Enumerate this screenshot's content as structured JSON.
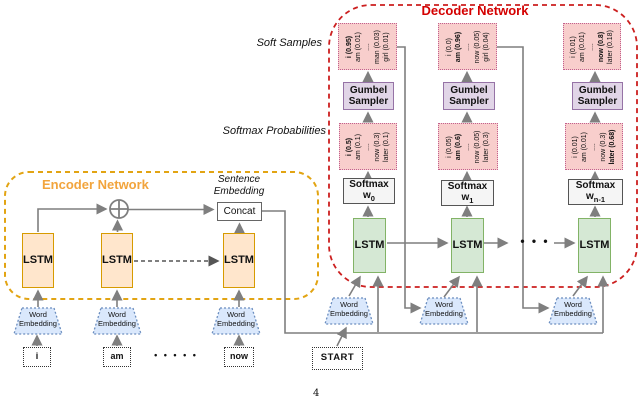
{
  "page": {
    "number": "4"
  },
  "colors": {
    "encoder_boundary": "#E2A413",
    "encoder_title": "#F2A43C",
    "decoder_boundary": "#CC1F1F",
    "decoder_title": "#D40000",
    "pink_fill": "#F8CECC",
    "pink_border": "#C2608E",
    "purple_fill": "#E1D5E7",
    "purple_border": "#9673A6",
    "green_fill": "#D5E8D4",
    "green_border": "#82B366",
    "peach_fill": "#FFE6CC",
    "peach_border": "#D79B00",
    "blue_fill": "#DAE8FC",
    "blue_border": "#6C8EBF",
    "wire_gray": "#7F7F7F"
  },
  "encoder": {
    "title": "Encoder Network",
    "lstm_label": "LSTM",
    "concat_label": "Concat",
    "sentence_embedding_line1": "Sentence",
    "sentence_embedding_line2": "Embedding",
    "word_embedding_line1": "Word",
    "word_embedding_line2": "Embedding",
    "input_words": [
      "i",
      "am",
      "now"
    ],
    "input_dots": "• • • • •"
  },
  "decoder": {
    "title": "Decoder Network",
    "soft_samples_label": "Soft Samples",
    "softmax_probabilities_label": "Softmax Probabilities",
    "lstm_label": "LSTM",
    "lstm_dots": "• • •",
    "start_label": "START",
    "gumbel_line1": "Gumbel",
    "gumbel_line2": "Sampler",
    "softmax_label": "Softmax",
    "w_label": "w",
    "softmax_subscripts": [
      "0",
      "1",
      "n-1"
    ],
    "word_embedding_line1": "Word",
    "word_embedding_line2": "Embedding",
    "columns": [
      {
        "soft_samples": [
          {
            "text": "i (0.95)",
            "bold": true
          },
          {
            "text": "am (0.01)",
            "bold": false
          },
          {
            "text": "....",
            "bold": false
          },
          {
            "text": "man (0.03)",
            "bold": false
          },
          {
            "text": "girl (0.01)",
            "bold": false
          }
        ],
        "softmax_probs": [
          {
            "text": "i (0.5)",
            "bold": true
          },
          {
            "text": "am (0.1)",
            "bold": false
          },
          {
            "text": "....",
            "bold": false
          },
          {
            "text": "now (0.3)",
            "bold": false
          },
          {
            "text": "later (0.1)",
            "bold": false
          }
        ]
      },
      {
        "soft_samples": [
          {
            "text": "i (0.0)",
            "bold": false
          },
          {
            "text": "am (0.96)",
            "bold": true
          },
          {
            "text": "....",
            "bold": false
          },
          {
            "text": "now (0.05)",
            "bold": false
          },
          {
            "text": "girl (0.04)",
            "bold": false
          }
        ],
        "softmax_probs": [
          {
            "text": "i (0.05)",
            "bold": false
          },
          {
            "text": "am (0.6)",
            "bold": true
          },
          {
            "text": "....",
            "bold": false
          },
          {
            "text": "now (0.05)",
            "bold": false
          },
          {
            "text": "later (0.3)",
            "bold": false
          }
        ]
      },
      {
        "soft_samples": [
          {
            "text": "i (0.01)",
            "bold": false
          },
          {
            "text": "am (0.01)",
            "bold": false
          },
          {
            "text": "....",
            "bold": false
          },
          {
            "text": "now (0.8)",
            "bold": true
          },
          {
            "text": "later (0.18)",
            "bold": false
          }
        ],
        "softmax_probs": [
          {
            "text": "i (0.01)",
            "bold": false
          },
          {
            "text": "am (0.01)",
            "bold": false
          },
          {
            "text": "....",
            "bold": false
          },
          {
            "text": "now (0.3)",
            "bold": false
          },
          {
            "text": "later (0.68)",
            "bold": true
          }
        ]
      }
    ]
  }
}
